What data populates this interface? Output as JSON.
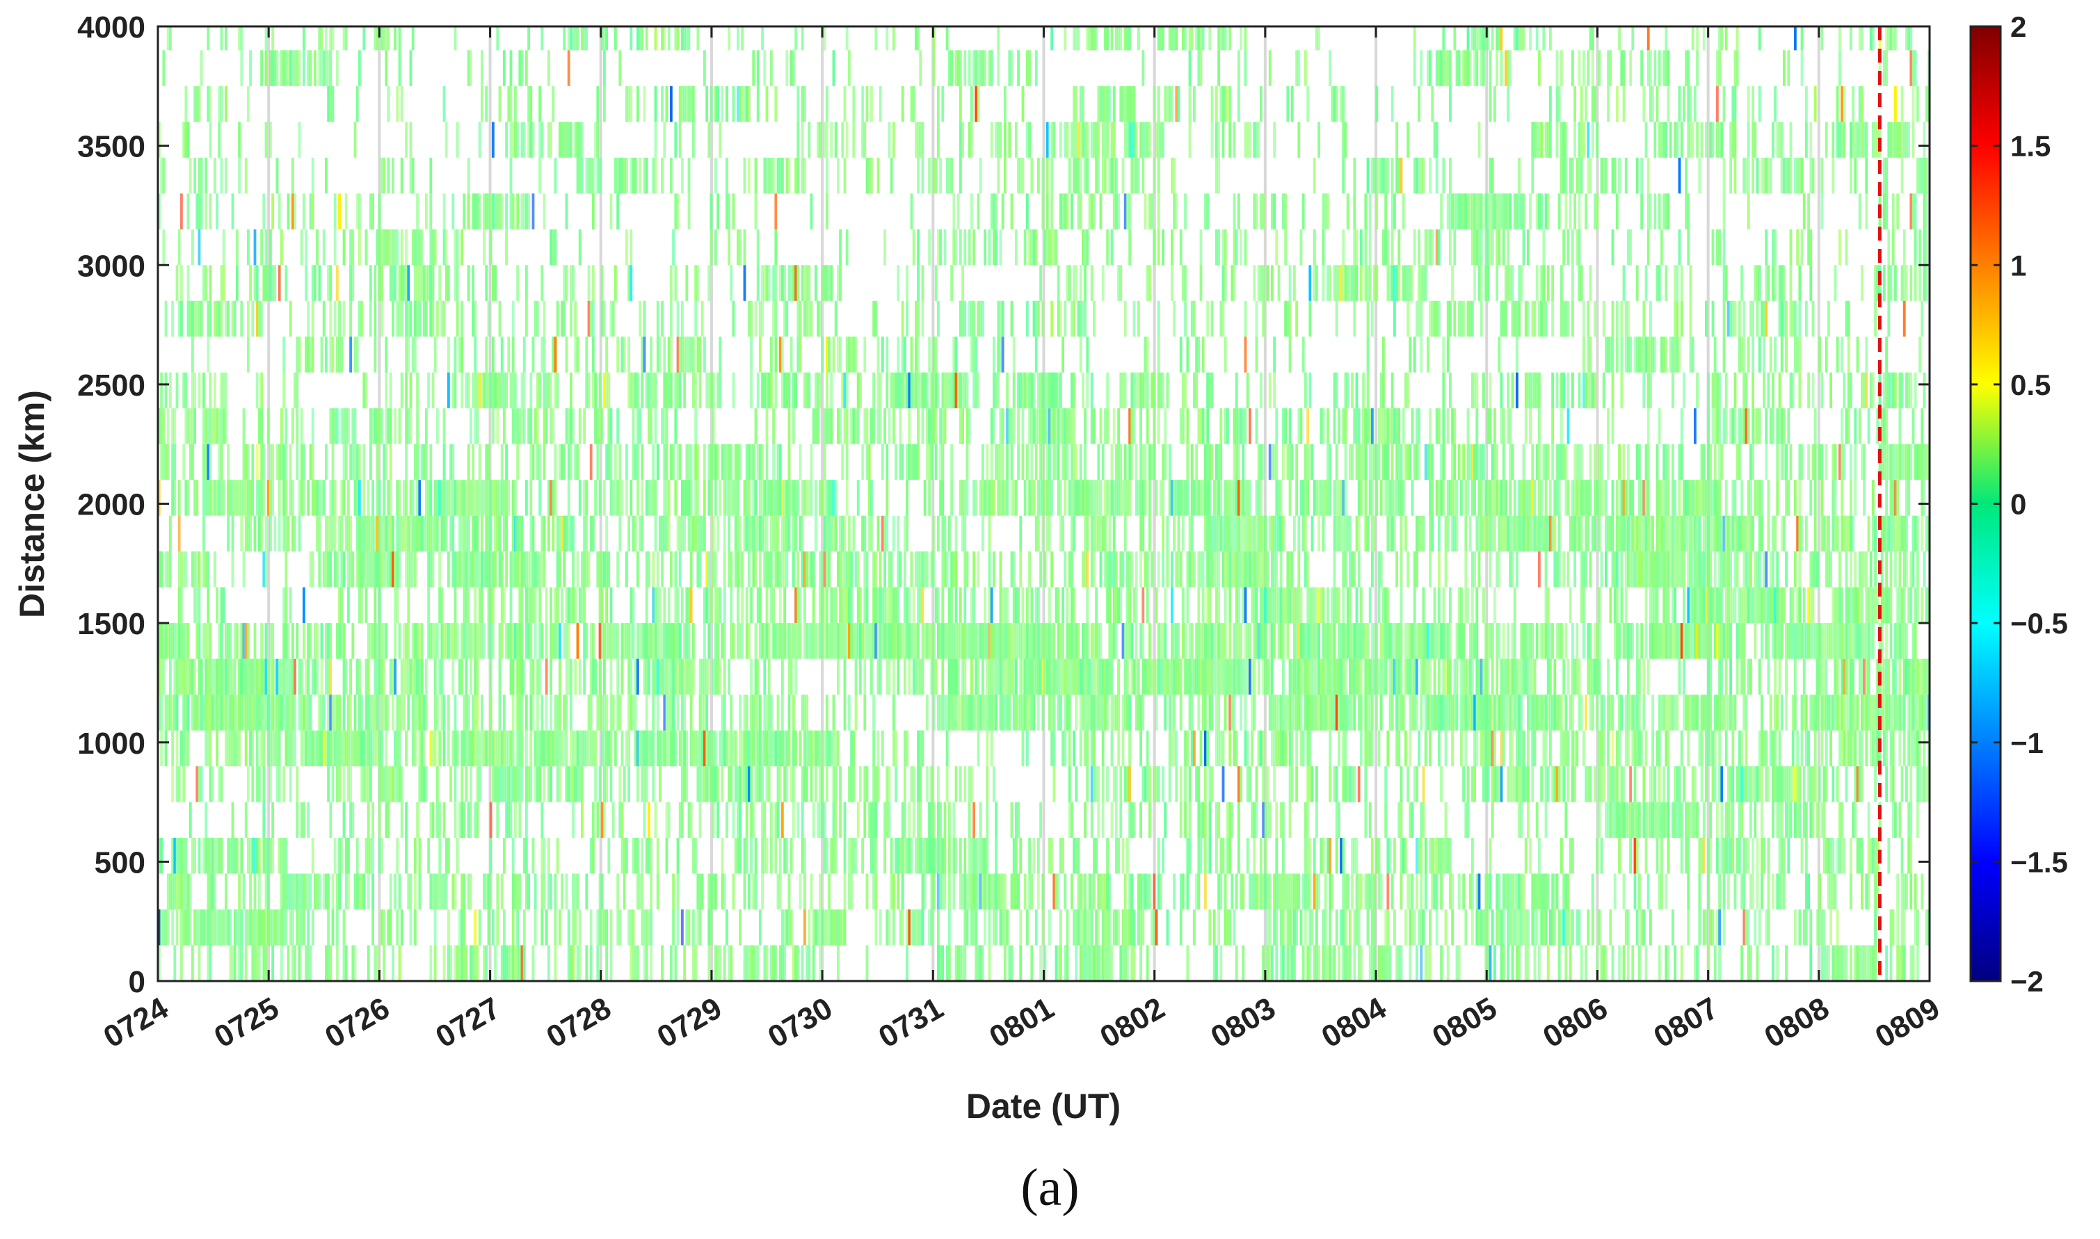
{
  "panel_label": "(a)",
  "chart_data": {
    "type": "heatmap",
    "title": "",
    "xlabel": "Date (UT)",
    "ylabel": "Distance (km)",
    "x_ticks": [
      "0724",
      "0725",
      "0726",
      "0727",
      "0728",
      "0729",
      "0730",
      "0731",
      "0801",
      "0802",
      "0803",
      "0804",
      "0805",
      "0806",
      "0807",
      "0808",
      "0809"
    ],
    "x_range_days": [
      0,
      16
    ],
    "y_ticks": [
      0,
      500,
      1000,
      1500,
      2000,
      2500,
      3000,
      3500,
      4000
    ],
    "ylim": [
      0,
      4000
    ],
    "colorbar": {
      "colormap": "jet",
      "ticks": [
        2,
        1.5,
        1,
        0.5,
        0,
        -0.5,
        -1,
        -1.5,
        -2
      ],
      "tick_labels": [
        "2",
        "1.5",
        "1",
        "0.5",
        "0",
        "−0.5",
        "−1",
        "−1.5",
        "−2"
      ],
      "clim": [
        -2,
        2
      ]
    },
    "grid": "vertical lines at each date tick",
    "distance_bins_km": [
      0,
      150,
      300,
      450,
      600,
      750,
      900,
      1050,
      1200,
      1350,
      1500,
      1650,
      1800,
      1950,
      2100,
      2250,
      2400,
      2550,
      2700,
      2850,
      3000,
      3150,
      3300,
      3450,
      3600,
      3750,
      3900,
      4000
    ],
    "band_data_coverage": [
      0.35,
      0.42,
      0.48,
      0.4,
      0.38,
      0.5,
      0.62,
      0.68,
      0.72,
      0.88,
      0.52,
      0.58,
      0.62,
      0.6,
      0.55,
      0.42,
      0.4,
      0.28,
      0.26,
      0.24,
      0.22,
      0.26,
      0.24,
      0.2,
      0.18,
      0.16,
      0.17
    ],
    "typical_value": 0.0,
    "typical_spread": 0.12,
    "reference_line": {
      "date": "0808",
      "fraction_of_day": 0.55,
      "style": "dashed",
      "color": "#e01010"
    },
    "plot_border_color": "#222222"
  }
}
